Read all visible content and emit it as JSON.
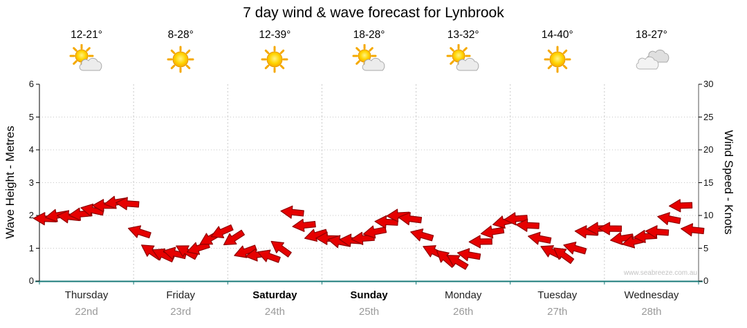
{
  "title": "7 day wind & wave forecast for Lynbrook",
  "watermark": "www.seabreeze.com.au",
  "axes": {
    "left": {
      "title": "Wave Height - Metres",
      "ticks": [
        0,
        1,
        2,
        3,
        4,
        5,
        6
      ]
    },
    "right": {
      "title": "Wind Speed - Knots",
      "ticks": [
        0,
        5,
        10,
        15,
        20,
        25,
        30
      ]
    }
  },
  "days": [
    {
      "name": "Thursday",
      "date": "22nd",
      "temp": "12-21°",
      "icon": "sun-cloud",
      "bold": false
    },
    {
      "name": "Friday",
      "date": "23rd",
      "temp": "8-28°",
      "icon": "sun",
      "bold": false
    },
    {
      "name": "Saturday",
      "date": "24th",
      "temp": "12-39°",
      "icon": "sun",
      "bold": true
    },
    {
      "name": "Sunday",
      "date": "25th",
      "temp": "18-28°",
      "icon": "sun-cloud",
      "bold": true
    },
    {
      "name": "Monday",
      "date": "26th",
      "temp": "13-32°",
      "icon": "sun-cloud",
      "bold": false
    },
    {
      "name": "Tuesday",
      "date": "27th",
      "temp": "14-40°",
      "icon": "sun",
      "bold": false
    },
    {
      "name": "Wednesday",
      "date": "28th",
      "temp": "18-27°",
      "icon": "cloud",
      "bold": false
    }
  ],
  "chart_data": {
    "type": "scatter",
    "subtype": "wind-direction-arrows",
    "title": "7 day wind & wave forecast for Lynbrook",
    "categories": [
      "Thursday",
      "Friday",
      "Saturday",
      "Sunday",
      "Monday",
      "Tuesday",
      "Wednesday"
    ],
    "samples_per_day": 8,
    "left_axis": {
      "label": "Wave Height - Metres",
      "range": [
        0,
        6
      ],
      "ticks": [
        0,
        1,
        2,
        3,
        4,
        5,
        6
      ]
    },
    "right_axis": {
      "label": "Wind Speed - Knots",
      "range": [
        0,
        30
      ],
      "ticks": [
        0,
        5,
        10,
        15,
        20,
        25,
        30
      ]
    },
    "grid": true,
    "series": [
      {
        "name": "Wind speed and direction",
        "unit": "knots",
        "color": "#e60000",
        "outline": "#8f0000",
        "knots": [
          9.5,
          10,
          9.8,
          10.2,
          10.8,
          11.5,
          12,
          11.8,
          7.5,
          4.5,
          4,
          4.2,
          4.5,
          5,
          6.5,
          7.5,
          6.5,
          4.5,
          4,
          3.8,
          5,
          10.5,
          8.5,
          7,
          6.5,
          6,
          6.2,
          6.5,
          7.5,
          9,
          10,
          9.5,
          7,
          4.5,
          3.5,
          3,
          4,
          6,
          7.5,
          9,
          9.5,
          8.5,
          6.5,
          4.5,
          4,
          5,
          7.5,
          8,
          8,
          6.5,
          6,
          6.8,
          7.5,
          9.5,
          11.5,
          7.8
        ],
        "direction_deg": [
          182,
          170,
          186,
          175,
          192,
          180,
          171,
          184,
          198,
          214,
          205,
          193,
          209,
          162,
          150,
          156,
          147,
          160,
          172,
          200,
          216,
          186,
          174,
          164,
          181,
          191,
          184,
          176,
          169,
          183,
          177,
          187,
          196,
          206,
          221,
          211,
          190,
          179,
          171,
          167,
          176,
          183,
          191,
          206,
          216,
          196,
          184,
          178,
          181,
          171,
          167,
          176,
          184,
          191,
          178,
          186
        ]
      }
    ]
  }
}
